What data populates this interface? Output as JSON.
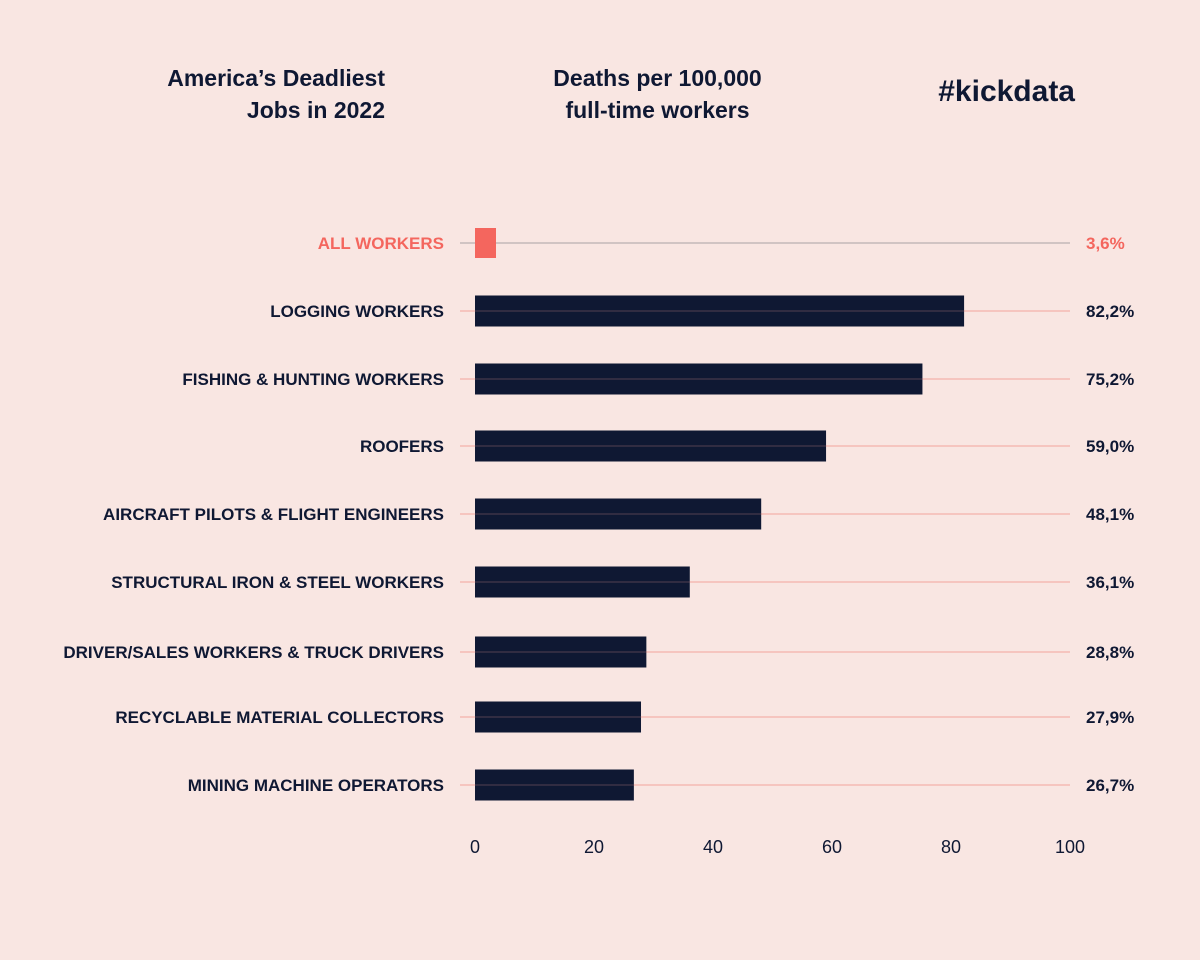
{
  "header": {
    "title": "America’s Deadliest\nJobs in 2022",
    "subtitle": "Deaths per 100,000\nfull-time workers",
    "brand": "#kickdata"
  },
  "colors": {
    "background": "#f9e6e2",
    "bar": "#0f1833",
    "highlight": "#f4665e",
    "guide": "#f4a49c",
    "highlight_guide": "#a9a2a4"
  },
  "chart_data": {
    "type": "bar",
    "orientation": "horizontal",
    "title": "America’s Deadliest Jobs in 2022",
    "subtitle": "Deaths per 100,000 full-time workers",
    "categories": [
      "ALL WORKERS",
      "LOGGING WORKERS",
      "FISHING & HUNTING WORKERS",
      "ROOFERS",
      "AIRCRAFT PILOTS & FLIGHT ENGINEERS",
      "STRUCTURAL IRON & STEEL WORKERS",
      "DRIVER/SALES WORKERS & TRUCK DRIVERS",
      "RECYCLABLE MATERIAL COLLECTORS",
      "MINING MACHINE OPERATORS"
    ],
    "values": [
      3.6,
      82.2,
      75.2,
      59.0,
      48.1,
      36.1,
      28.8,
      27.9,
      26.7
    ],
    "value_labels": [
      "3,6%",
      "82,2%",
      "75,2%",
      "59,0%",
      "48,1%",
      "36,1%",
      "28,8%",
      "27,9%",
      "26,7%"
    ],
    "highlight_index": 0,
    "xlim": [
      0,
      100
    ],
    "xticks": [
      0,
      20,
      40,
      60,
      80,
      100
    ],
    "xlabel": "",
    "ylabel": "",
    "grid": false,
    "legend": "none"
  }
}
